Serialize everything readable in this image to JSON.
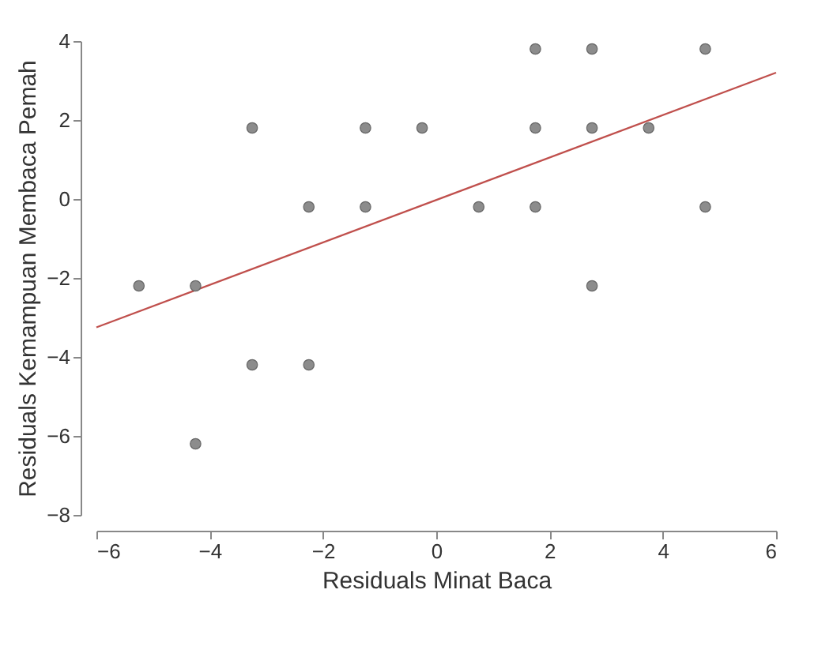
{
  "chart_data": {
    "type": "scatter",
    "xlabel": "Residuals Minat Baca",
    "ylabel": "Residuals Kemampuan Membaca Pemah",
    "xlim": [
      -6,
      6
    ],
    "ylim": [
      -8,
      4
    ],
    "xticks": [
      -6,
      -4,
      -2,
      0,
      2,
      4,
      6
    ],
    "yticks": [
      -8,
      -6,
      -4,
      -2,
      0,
      2,
      4
    ],
    "grid": false,
    "series": [
      {
        "color": "#8c8c8c",
        "marker": "circle",
        "x": [
          -5.25,
          -4.25,
          -4.25,
          -3.25,
          -3.25,
          -2.25,
          -2.25,
          -1.25,
          -1.25,
          -0.25,
          0.75,
          1.75,
          1.75,
          1.75,
          2.75,
          2.75,
          2.75,
          3.75,
          4.75,
          4.75
        ],
        "values": [
          -2.2,
          -2.2,
          -6.2,
          1.8,
          -4.2,
          -0.2,
          -4.2,
          1.8,
          -0.2,
          1.8,
          -0.2,
          3.8,
          1.8,
          -0.2,
          3.8,
          1.8,
          -2.2,
          1.8,
          3.8,
          -0.2
        ]
      },
      {
        "type": "line",
        "color": "#c0504d",
        "x": [
          -6,
          6
        ],
        "values": [
          -3.25,
          3.2
        ]
      }
    ]
  }
}
